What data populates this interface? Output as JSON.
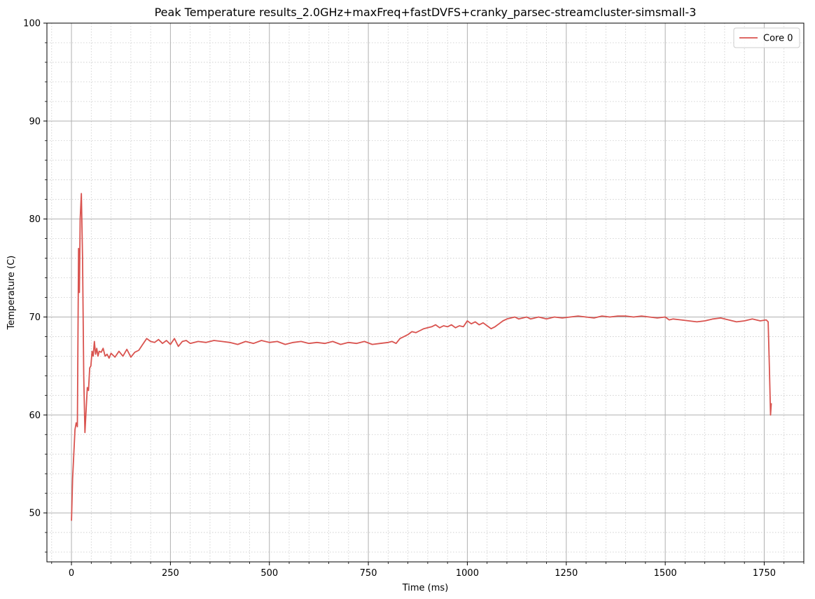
{
  "chart_data": {
    "type": "line",
    "title": "Peak Temperature results_2.0GHz+maxFreq+fastDVFS+cranky_parsec-streamcluster-simsmall-3",
    "xlabel": "Time (ms)",
    "ylabel": "Temperature (C)",
    "xlim": [
      -62,
      1850
    ],
    "ylim": [
      45,
      100
    ],
    "x_ticks": [
      0,
      250,
      500,
      750,
      1000,
      1250,
      1500,
      1750
    ],
    "y_ticks": [
      50,
      60,
      70,
      80,
      90,
      100
    ],
    "x_minor_step": 50,
    "y_minor_step": 2,
    "grid": "major solid, minor dotted",
    "legend": "top-right",
    "series": [
      {
        "name": "Core 0",
        "color": "#d9534f",
        "x": [
          0,
          3,
          6,
          9,
          12,
          15,
          18,
          20,
          22,
          25,
          28,
          31,
          34,
          37,
          40,
          43,
          46,
          49,
          52,
          55,
          58,
          61,
          64,
          67,
          70,
          75,
          80,
          85,
          90,
          95,
          100,
          110,
          120,
          130,
          140,
          150,
          160,
          170,
          180,
          190,
          200,
          210,
          220,
          230,
          240,
          250,
          260,
          270,
          280,
          290,
          300,
          320,
          340,
          360,
          380,
          400,
          420,
          440,
          460,
          480,
          500,
          520,
          540,
          560,
          580,
          600,
          620,
          640,
          660,
          680,
          700,
          720,
          740,
          760,
          780,
          800,
          810,
          820,
          830,
          840,
          850,
          860,
          870,
          880,
          890,
          900,
          910,
          920,
          930,
          940,
          950,
          960,
          970,
          980,
          990,
          1000,
          1010,
          1020,
          1030,
          1040,
          1050,
          1060,
          1070,
          1080,
          1090,
          1100,
          1110,
          1120,
          1130,
          1140,
          1150,
          1160,
          1170,
          1180,
          1190,
          1200,
          1220,
          1240,
          1260,
          1280,
          1300,
          1320,
          1340,
          1360,
          1380,
          1400,
          1420,
          1440,
          1460,
          1480,
          1500,
          1510,
          1520,
          1540,
          1560,
          1580,
          1600,
          1620,
          1640,
          1660,
          1680,
          1700,
          1720,
          1740,
          1755,
          1760,
          1763,
          1766,
          1768
        ],
        "y": [
          49.2,
          53.5,
          56.0,
          58.5,
          59.2,
          58.8,
          77.0,
          72.5,
          80.0,
          82.6,
          76.0,
          64.0,
          58.2,
          60.5,
          62.8,
          62.5,
          64.8,
          65.0,
          66.5,
          66.0,
          67.5,
          66.2,
          66.8,
          66.0,
          66.5,
          66.4,
          66.8,
          66.0,
          66.2,
          65.8,
          66.3,
          65.9,
          66.5,
          66.0,
          66.7,
          65.9,
          66.4,
          66.6,
          67.2,
          67.8,
          67.5,
          67.4,
          67.7,
          67.3,
          67.6,
          67.2,
          67.8,
          67.0,
          67.5,
          67.6,
          67.3,
          67.5,
          67.4,
          67.6,
          67.5,
          67.4,
          67.2,
          67.5,
          67.3,
          67.6,
          67.4,
          67.5,
          67.2,
          67.4,
          67.5,
          67.3,
          67.4,
          67.3,
          67.5,
          67.2,
          67.4,
          67.3,
          67.5,
          67.2,
          67.3,
          67.4,
          67.5,
          67.3,
          67.8,
          68.0,
          68.2,
          68.5,
          68.4,
          68.6,
          68.8,
          68.9,
          69.0,
          69.2,
          68.9,
          69.1,
          69.0,
          69.2,
          68.9,
          69.1,
          69.0,
          69.6,
          69.3,
          69.5,
          69.2,
          69.4,
          69.1,
          68.8,
          69.0,
          69.3,
          69.6,
          69.8,
          69.9,
          70.0,
          69.8,
          69.9,
          70.0,
          69.8,
          69.9,
          70.0,
          69.9,
          69.8,
          70.0,
          69.9,
          70.0,
          70.1,
          70.0,
          69.9,
          70.1,
          70.0,
          70.1,
          70.1,
          70.0,
          70.1,
          70.0,
          69.9,
          70.0,
          69.7,
          69.8,
          69.7,
          69.6,
          69.5,
          69.6,
          69.8,
          69.9,
          69.7,
          69.5,
          69.6,
          69.8,
          69.6,
          69.7,
          69.5,
          65.0,
          60.0,
          61.2
        ]
      }
    ]
  }
}
